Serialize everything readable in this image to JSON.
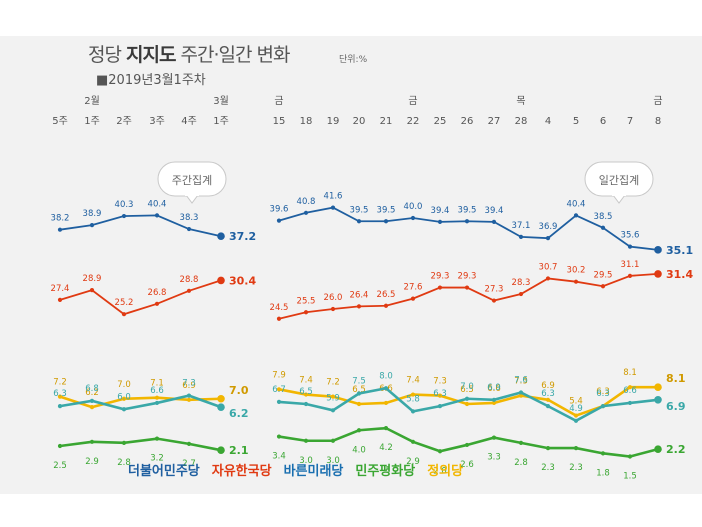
{
  "title": {
    "prefix": "정당 ",
    "bold": "지지도",
    "suffix": " 주간·일간 변화"
  },
  "unit": "단위:%",
  "subtitle": "■2019년3월1주차",
  "bubbles": {
    "weekly": "주간집계",
    "daily": "일간집계"
  },
  "chart_data": {
    "type": "line",
    "weekly": {
      "top_labels": [
        "",
        "2월",
        "",
        "",
        "",
        "3월"
      ],
      "x": [
        "5주",
        "1주",
        "2주",
        "3주",
        "4주",
        "1주"
      ],
      "series": [
        {
          "name": "더불어민주당",
          "values": [
            38.2,
            38.9,
            40.3,
            40.4,
            38.3,
            37.2
          ]
        },
        {
          "name": "자유한국당",
          "values": [
            27.4,
            28.9,
            25.2,
            26.8,
            28.8,
            30.4
          ]
        },
        {
          "name": "바른미래당",
          "values": [
            7.2,
            6.2,
            7.0,
            7.1,
            6.9,
            7.0
          ]
        },
        {
          "name": "민주평화당",
          "values": [
            6.3,
            6.8,
            6.0,
            6.6,
            7.3,
            6.2
          ]
        },
        {
          "name": "정의당",
          "values": [
            2.5,
            2.9,
            2.8,
            3.2,
            2.7,
            2.1
          ]
        }
      ]
    },
    "daily": {
      "top_labels": [
        "금",
        "",
        "",
        "",
        "",
        "금",
        "",
        "",
        "",
        "목",
        "",
        "",
        "",
        "",
        "금"
      ],
      "x": [
        "15",
        "18",
        "19",
        "20",
        "21",
        "22",
        "25",
        "26",
        "27",
        "28",
        "4",
        "5",
        "6",
        "7",
        "8"
      ],
      "series": [
        {
          "name": "더불어민주당",
          "values": [
            39.6,
            40.8,
            41.6,
            39.5,
            39.5,
            40.0,
            39.4,
            39.5,
            39.4,
            37.1,
            36.9,
            40.4,
            38.5,
            35.6,
            35.1
          ]
        },
        {
          "name": "자유한국당",
          "values": [
            24.5,
            25.5,
            26.0,
            26.4,
            26.5,
            27.6,
            29.3,
            29.3,
            27.3,
            28.3,
            30.7,
            30.2,
            29.5,
            31.1,
            31.4
          ]
        },
        {
          "name": "바른미래당",
          "values": [
            7.9,
            7.4,
            7.2,
            6.5,
            6.6,
            7.4,
            7.3,
            6.5,
            6.6,
            7.3,
            6.9,
            5.4,
            6.3,
            8.1,
            8.1
          ]
        },
        {
          "name": "민주평화당",
          "values": [
            6.7,
            6.5,
            5.9,
            7.5,
            8.0,
            5.8,
            6.3,
            7.0,
            6.9,
            7.6,
            6.3,
            4.9,
            6.3,
            6.6,
            6.9
          ]
        },
        {
          "name": "정의당",
          "values": [
            3.4,
            3.0,
            3.0,
            4.0,
            4.2,
            2.9,
            2.0,
            2.6,
            3.3,
            2.8,
            2.3,
            2.3,
            1.8,
            1.5,
            2.2
          ]
        }
      ]
    },
    "colors": [
      "#1f5fa0",
      "#e03a12",
      "#f2b600",
      "#3aa8a8",
      "#3aa632"
    ]
  },
  "legend": [
    {
      "label": "더불어민주당",
      "color": "#1f5fa0"
    },
    {
      "label": "자유한국당",
      "color": "#e03a12"
    },
    {
      "label": "바른미래당",
      "color": "#1a6fb0"
    },
    {
      "label": "민주평화당",
      "color": "#3aa632"
    },
    {
      "label": "정의당",
      "color": "#f2b600"
    }
  ]
}
